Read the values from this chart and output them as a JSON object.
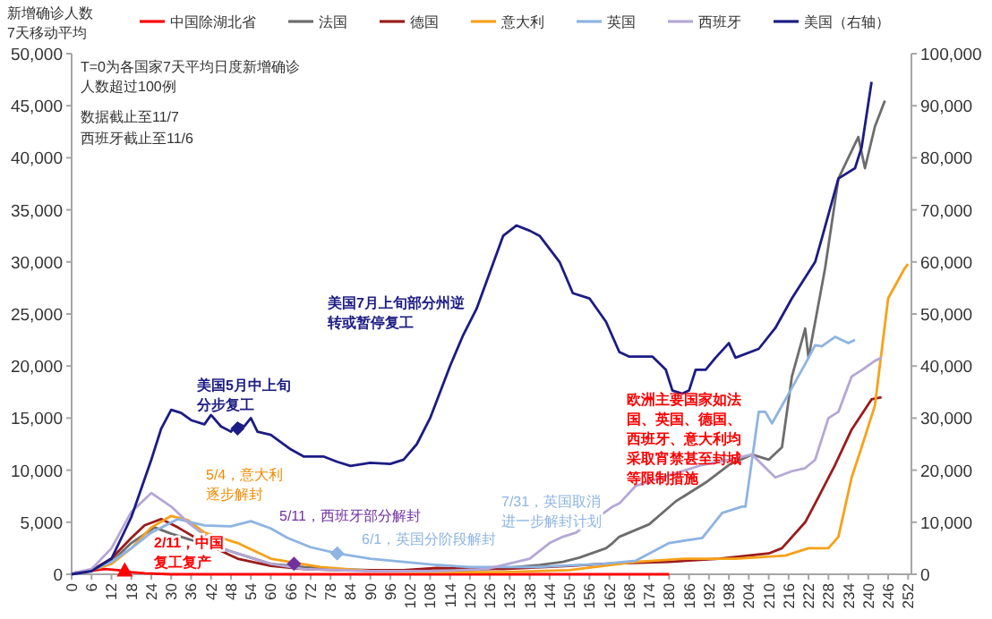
{
  "chart_data": {
    "type": "line",
    "title": "新增确诊人数7天移动平均",
    "legend": "top",
    "grid": false,
    "marker": "none",
    "line_style": "solid",
    "xlim": [
      0,
      253
    ],
    "xticks": [
      0,
      6,
      12,
      18,
      24,
      30,
      36,
      42,
      48,
      54,
      60,
      66,
      72,
      78,
      84,
      90,
      96,
      102,
      108,
      114,
      120,
      126,
      132,
      138,
      144,
      150,
      156,
      162,
      168,
      174,
      180,
      186,
      192,
      198,
      204,
      210,
      216,
      222,
      228,
      234,
      240,
      246,
      252
    ],
    "ylim": [
      0,
      50000
    ],
    "yticks": [
      {
        "value": 0,
        "label": "0"
      },
      {
        "value": 5000,
        "label": "5,000"
      },
      {
        "value": 10000,
        "label": "10,000"
      },
      {
        "value": 15000,
        "label": "15,000"
      },
      {
        "value": 20000,
        "label": "20,000"
      },
      {
        "value": 25000,
        "label": "25,000"
      },
      {
        "value": 30000,
        "label": "30,000"
      },
      {
        "value": 35000,
        "label": "35,000"
      },
      {
        "value": 40000,
        "label": "40,000"
      },
      {
        "value": 45000,
        "label": "45,000"
      },
      {
        "value": 50000,
        "label": "50,000"
      }
    ],
    "y2lim": [
      0,
      100000
    ],
    "y2ticks": [
      {
        "value": 0,
        "label": "0"
      },
      {
        "value": 10000,
        "label": "10,000"
      },
      {
        "value": 20000,
        "label": "20,000"
      },
      {
        "value": 30000,
        "label": "30,000"
      },
      {
        "value": 40000,
        "label": "40,000"
      },
      {
        "value": 50000,
        "label": "50,000"
      },
      {
        "value": 60000,
        "label": "60,000"
      },
      {
        "value": 70000,
        "label": "70,000"
      },
      {
        "value": 80000,
        "label": "80,000"
      },
      {
        "value": 90000,
        "label": "90,000"
      },
      {
        "value": 100000,
        "label": "100,000"
      }
    ],
    "series": [
      {
        "name": "中国除湖北省",
        "color": "#ff0000",
        "x": [
          0,
          5,
          10,
          14,
          18,
          22,
          30,
          50,
          80,
          120,
          150,
          180
        ],
        "values": [
          100,
          300,
          500,
          400,
          200,
          100,
          0,
          0,
          0,
          0,
          0,
          0
        ]
      },
      {
        "name": "法国",
        "color": "#6d6d6d",
        "x": [
          0,
          6,
          12,
          18,
          25,
          30,
          36,
          45,
          52,
          60,
          70,
          80,
          90,
          100,
          110,
          120,
          130,
          141,
          148,
          153,
          161,
          163,
          165,
          174,
          182,
          191,
          198,
          205,
          210,
          214,
          217,
          221,
          222,
          227,
          231,
          234,
          237,
          239,
          242,
          245
        ],
        "values": [
          100,
          400,
          1200,
          3000,
          4500,
          3900,
          3300,
          2500,
          1800,
          1000,
          700,
          500,
          400,
          300,
          300,
          400,
          600,
          900,
          1200,
          1600,
          2500,
          3000,
          3600,
          4800,
          7000,
          8800,
          10500,
          11500,
          11000,
          12200,
          19000,
          23600,
          20800,
          29400,
          38000,
          40000,
          42000,
          39000,
          43000,
          45500
        ]
      },
      {
        "name": "德国",
        "color": "#9b1b1b",
        "x": [
          0,
          6,
          12,
          18,
          22,
          27,
          32,
          40,
          50,
          60,
          70,
          80,
          100,
          110,
          130,
          150,
          160,
          180,
          195,
          210,
          214,
          221,
          224,
          230,
          235,
          241,
          244
        ],
        "values": [
          100,
          400,
          1500,
          3500,
          4700,
          5300,
          4500,
          3000,
          1500,
          800,
          500,
          400,
          400,
          600,
          500,
          800,
          1000,
          1200,
          1500,
          2000,
          2500,
          5000,
          6800,
          10500,
          13900,
          16800,
          17000
        ]
      },
      {
        "name": "意大利",
        "color": "#f7a11a",
        "x": [
          0,
          6,
          12,
          18,
          24,
          30,
          35,
          40,
          50,
          60,
          75,
          90,
          110,
          130,
          150,
          170,
          185,
          200,
          215,
          222,
          228,
          231,
          235,
          238,
          242,
          246,
          251,
          252
        ],
        "values": [
          100,
          400,
          1000,
          2500,
          4500,
          5600,
          5200,
          4000,
          3000,
          1500,
          700,
          300,
          200,
          200,
          400,
          1200,
          1500,
          1500,
          1800,
          2500,
          2500,
          3600,
          9300,
          12200,
          16200,
          26500,
          29400,
          29800
        ]
      },
      {
        "name": "英国",
        "color": "#8db4e2",
        "x": [
          0,
          6,
          12,
          18,
          24,
          32,
          40,
          48,
          54,
          60,
          65,
          72,
          80,
          90,
          100,
          110,
          120,
          140,
          160,
          170,
          180,
          190,
          196,
          202,
          203,
          207,
          209,
          211,
          214,
          217,
          221,
          224,
          226,
          230,
          234,
          236
        ],
        "values": [
          100,
          400,
          1200,
          2500,
          4000,
          5300,
          4700,
          4600,
          5100,
          4400,
          3500,
          2600,
          2000,
          1500,
          1200,
          900,
          700,
          700,
          1000,
          1300,
          3000,
          3500,
          5900,
          6500,
          6500,
          15600,
          15600,
          14500,
          16200,
          17900,
          20200,
          22000,
          21900,
          22800,
          22200,
          22500
        ]
      },
      {
        "name": "西班牙",
        "color": "#b4a7d6",
        "x": [
          0,
          6,
          12,
          18,
          24,
          30,
          35,
          45,
          60,
          70,
          90,
          110,
          125,
          138,
          144,
          148,
          152,
          163,
          165,
          170,
          180,
          190,
          198,
          205,
          212,
          217,
          221,
          224,
          228,
          231,
          235,
          238,
          242,
          244
        ],
        "values": [
          100,
          500,
          2500,
          6000,
          7800,
          6500,
          5000,
          2500,
          1000,
          500,
          300,
          300,
          500,
          1500,
          3000,
          3600,
          4000,
          6500,
          6800,
          8500,
          9500,
          10500,
          11000,
          11500,
          9300,
          9900,
          10200,
          11000,
          15000,
          15600,
          19000,
          19600,
          20500,
          20800
        ]
      },
      {
        "name": "美国（右轴）",
        "color": "#1c1c84",
        "axis": "y2",
        "x": [
          0,
          6,
          12,
          18,
          24,
          27,
          30,
          33,
          36,
          40,
          42,
          45,
          48,
          50,
          52,
          54,
          56,
          60,
          66,
          70,
          76,
          80,
          84,
          90,
          96,
          100,
          104,
          108,
          114,
          118,
          122,
          126,
          130,
          134,
          138,
          141,
          147,
          151,
          156,
          161,
          165,
          168,
          175,
          179,
          181,
          184,
          186,
          188,
          191,
          194,
          198,
          200,
          207,
          212,
          217,
          221,
          224,
          226,
          231,
          236,
          238,
          241
        ],
        "values": [
          0,
          600,
          3000,
          11000,
          22000,
          28000,
          31600,
          31000,
          29600,
          28800,
          30600,
          28400,
          27400,
          29000,
          28400,
          30000,
          27400,
          26800,
          24000,
          22600,
          22600,
          21600,
          20800,
          21400,
          21200,
          22000,
          25000,
          30000,
          40000,
          46000,
          51000,
          58000,
          65000,
          67000,
          66000,
          65000,
          60000,
          54000,
          53000,
          48500,
          42700,
          41800,
          41800,
          39300,
          35300,
          34700,
          35300,
          39300,
          39300,
          41600,
          44400,
          41600,
          43300,
          47300,
          53000,
          57000,
          60000,
          64500,
          76000,
          78000,
          82000,
          94600
        ]
      }
    ],
    "annotations": [
      "T=0为各国家7天平均日度新增确诊人数超过100例",
      "数据截止至11/7",
      "西班牙截止至11/6",
      {
        "text": "美国5月中上旬分步复工",
        "x": 50,
        "y": 14000
      },
      "美国7月上旬部分州逆转或暂停复工",
      "5/4，意大利逐步解封",
      {
        "text": "5/11，西班牙部分解封",
        "x": 67,
        "y": 1000
      },
      {
        "text": "6/1，英国分阶段解封",
        "x": 80,
        "y": 2000
      },
      "7/31，英国取消进一步解封计划",
      "欧洲主要国家如法国、英国、德国、西班牙、意大利均采取宵禁甚至封城等限制措施",
      {
        "text": "2/11，中国复工复产",
        "x": 16,
        "y": 300
      }
    ]
  }
}
